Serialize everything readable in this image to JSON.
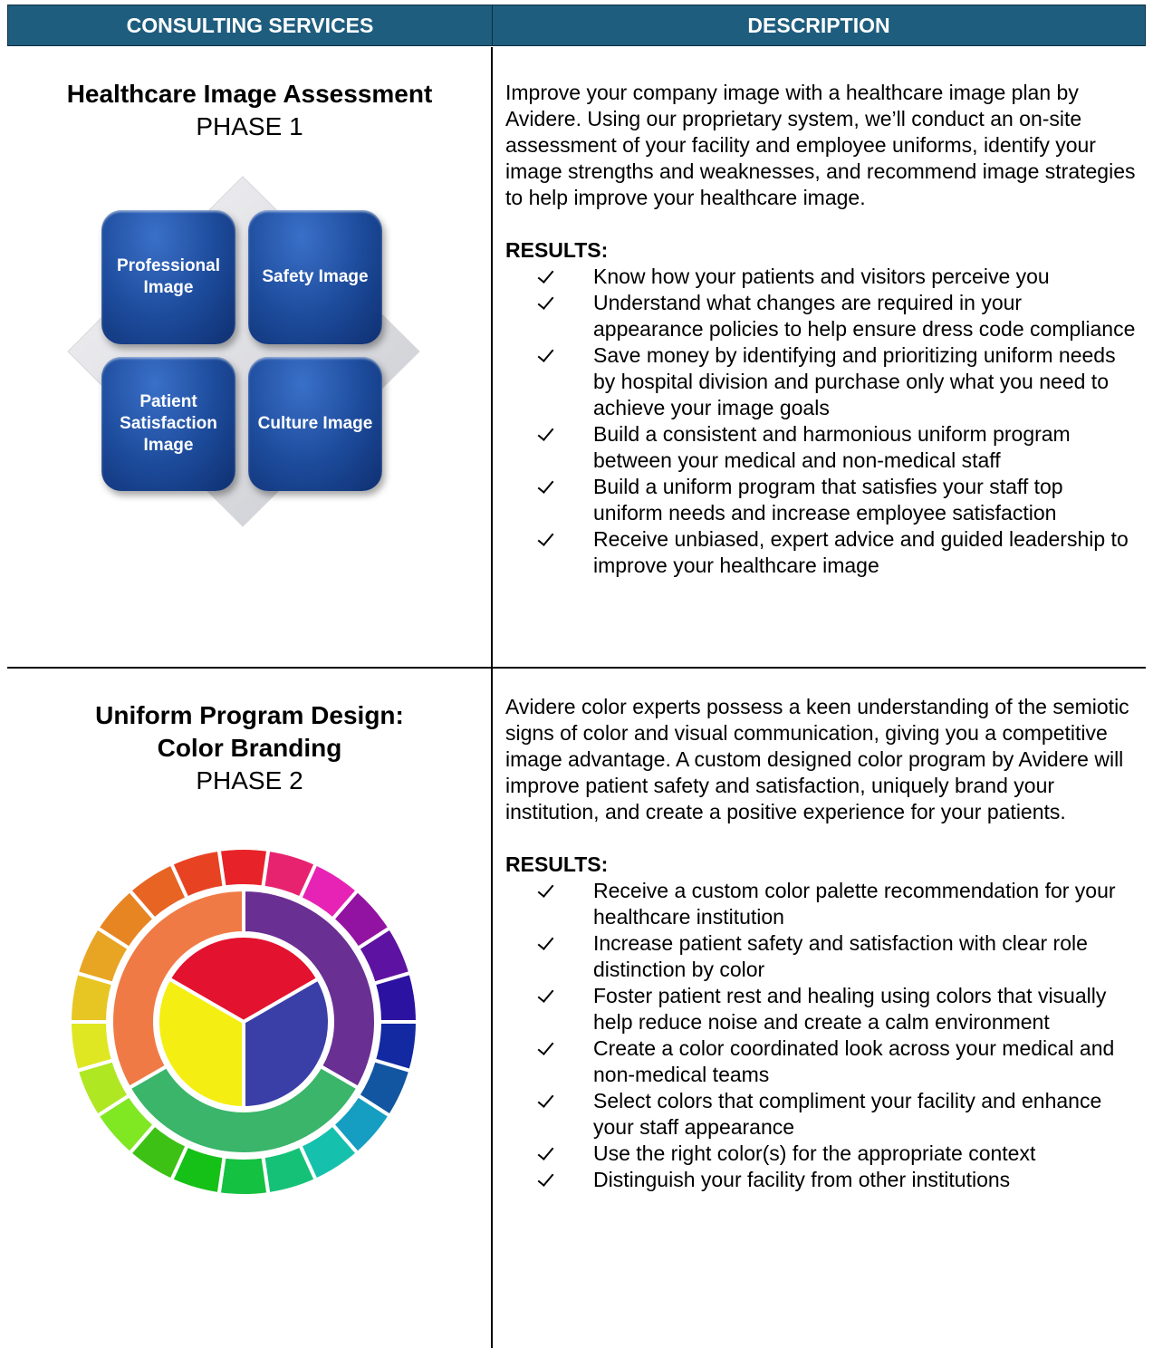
{
  "table": {
    "headers": [
      "CONSULTING SERVICES",
      "DESCRIPTION"
    ],
    "rows": [
      {
        "title_lines": [
          "Healthcare Image Assessment"
        ],
        "phase": "PHASE 1",
        "diagram": [
          "Professional Image",
          "Safety Image",
          "Patient Satisfaction Image",
          "Culture Image"
        ],
        "description": "Improve your company image with a healthcare image plan by Avidere. Using our proprietary system, we’ll conduct an on-site assessment of your facility and employee uniforms, identify your image strengths and weaknesses, and recommend image strategies to help improve your healthcare image.",
        "results_label": "RESULTS:",
        "results": [
          "Know how your patients and visitors perceive you",
          "Understand what changes are required in your appearance policies to help ensure dress code compliance",
          "Save money by identifying and prioritizing uniform needs by hospital division and purchase only what you need to achieve your image goals",
          "Build a consistent and harmonious uniform program between your medical and non-medical staff",
          "Build a uniform program that satisfies your staff top uniform needs and increase employee satisfaction",
          "Receive unbiased, expert advice and guided leadership to improve your healthcare image"
        ]
      },
      {
        "title_lines": [
          "Uniform Program Design:",
          "Color Branding"
        ],
        "phase": "PHASE 2",
        "description": "Avidere color experts possess a keen understanding of the semiotic signs of color and visual communication, giving you a competitive image advantage. A custom designed color program by Avidere will improve patient safety and satisfaction, uniquely brand your institution, and create a positive experience for your patients.",
        "results_label": "RESULTS:",
        "results": [
          "Receive a custom color palette recommendation for your healthcare institution",
          "Increase patient safety and satisfaction with clear role distinction by color",
          "Foster patient rest and healing using colors that visually help reduce noise and create a calm environment",
          "Create a color coordinated look across your medical and non-medical teams",
          "Select colors that compliment your facility and enhance your staff appearance",
          "Use the right color(s) for the appropriate context",
          "Distinguish your facility from other institutions"
        ]
      }
    ]
  }
}
